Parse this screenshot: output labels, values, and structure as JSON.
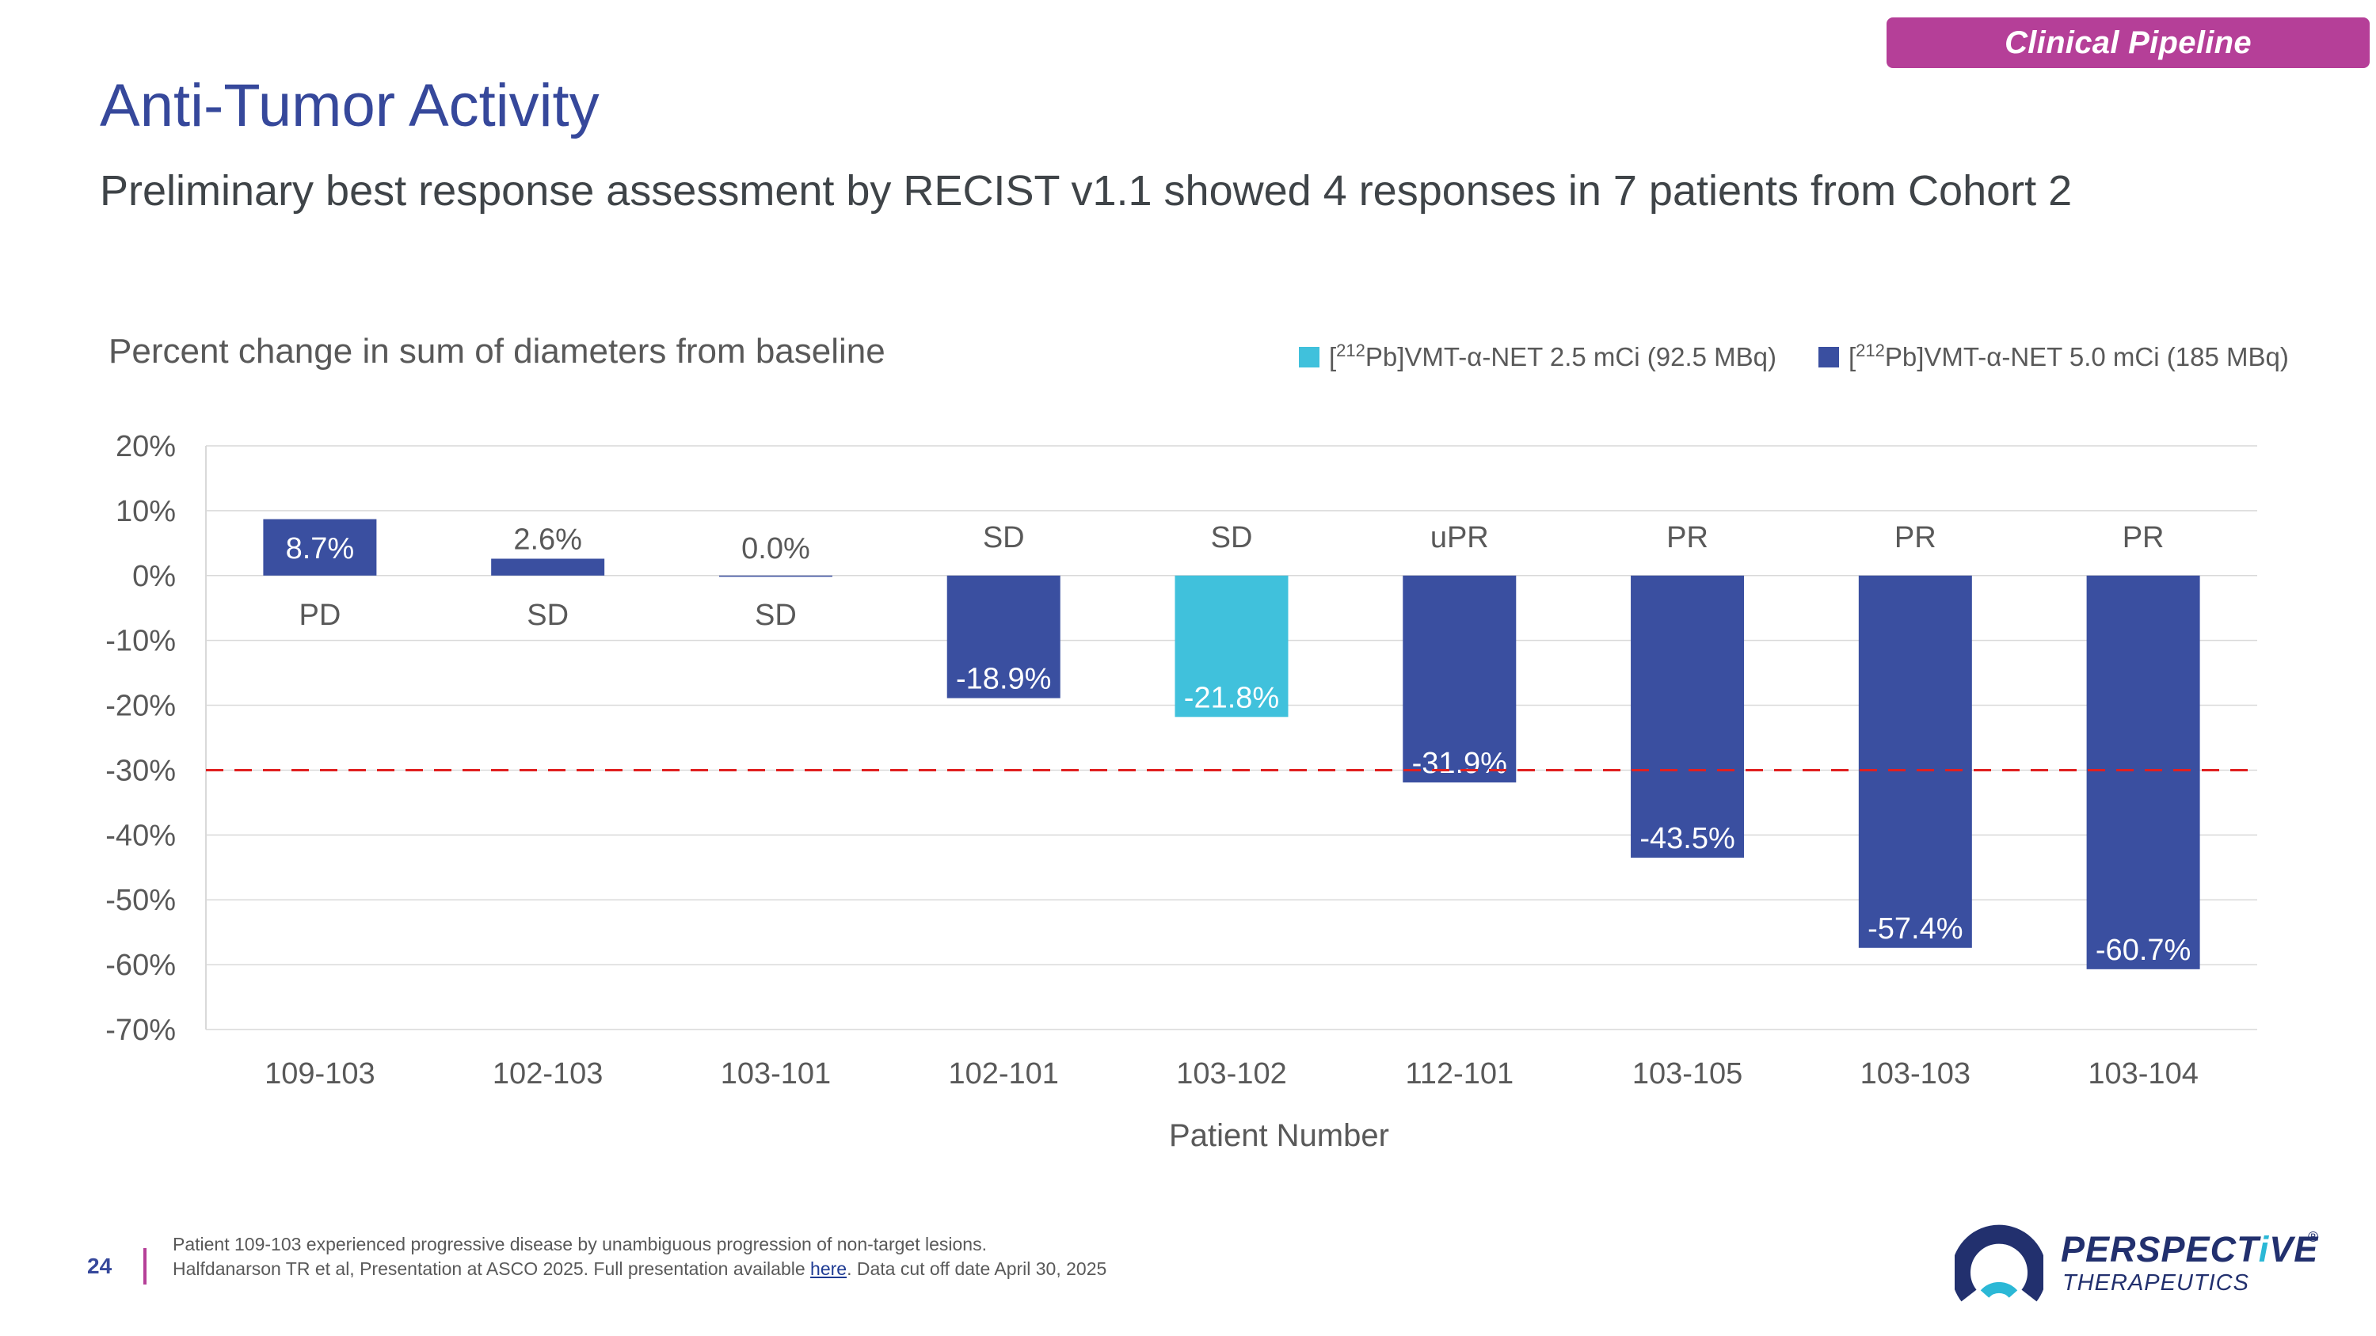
{
  "badge": "Clinical Pipeline",
  "title": "Anti-Tumor Activity",
  "subtitle": "Preliminary best response assessment by RECIST v1.1 showed 4 responses in 7 patients from Cohort  2",
  "chart_data": {
    "type": "bar",
    "title": "Percent change in sum of diameters from baseline",
    "xlabel": "Patient Number",
    "ylabel": "",
    "ylim": [
      -70,
      20
    ],
    "yticks": [
      20,
      10,
      0,
      -10,
      -20,
      -30,
      -40,
      -50,
      -60,
      -70
    ],
    "ytick_labels": [
      "20%",
      "10%",
      "0%",
      "-10%",
      "-20%",
      "-30%",
      "-40%",
      "-50%",
      "-60%",
      "-70%"
    ],
    "grid": true,
    "legend_position": "top-right",
    "reference_line": {
      "value": -30,
      "style": "dashed",
      "color": "#e02020"
    },
    "series_legend": [
      {
        "name_prefix": "[",
        "name_sup": "212",
        "name_rest": "Pb]VMT-α-NET 2.5 mCi (92.5 MBq)",
        "color": "#40c1dc"
      },
      {
        "name_prefix": "[",
        "name_sup": "212",
        "name_rest": "Pb]VMT-α-NET 5.0 mCi (185 MBq)",
        "color": "#3a4fa0"
      }
    ],
    "categories": [
      "109-103",
      "102-103",
      "103-101",
      "102-101",
      "103-102",
      "112-101",
      "103-105",
      "103-103",
      "103-104"
    ],
    "values": [
      8.7,
      2.6,
      0.0,
      -18.9,
      -21.8,
      -31.9,
      -43.5,
      -57.4,
      -60.7
    ],
    "value_labels": [
      "8.7%",
      "2.6%",
      "0.0%",
      "-18.9%",
      "-21.8%",
      "-31.9%",
      "-43.5%",
      "-57.4%",
      "-60.7%"
    ],
    "series_index": [
      1,
      1,
      1,
      1,
      0,
      1,
      1,
      1,
      1
    ],
    "responses": [
      "PD",
      "SD",
      "SD",
      "SD",
      "SD",
      "uPR",
      "PR",
      "PR",
      "PR"
    ]
  },
  "footer": {
    "page_number": "24",
    "note_line1": "Patient 109-103 experienced progressive disease by unambiguous progression of non-target lesions.",
    "note_line2_pre": "Halfdanarson TR et al, Presentation at ASCO 2025. Full presentation available ",
    "note_line2_link": "here",
    "note_line2_post": ". Data cut off date April 30, 2025"
  },
  "logo": {
    "name_part1": "PERSPECT",
    "name_accent": "i",
    "name_part2": "VE",
    "reg": "®",
    "sub": "THERAPEUTICS"
  }
}
